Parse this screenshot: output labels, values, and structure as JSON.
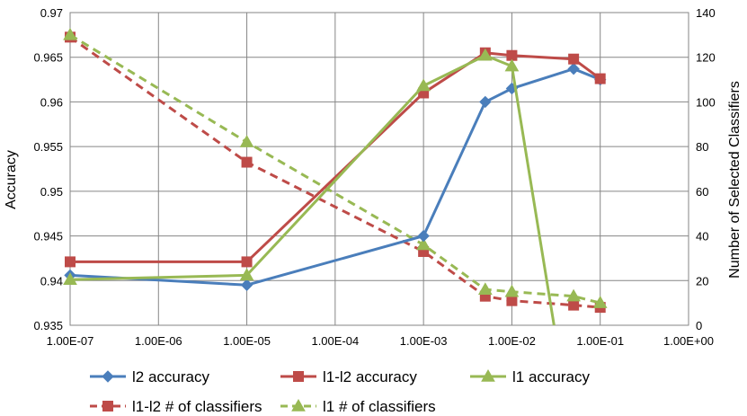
{
  "chart_data": {
    "type": "line",
    "title": "",
    "x_scale": "log",
    "x_ticks": [
      1e-07,
      1e-06,
      1e-05,
      0.0001,
      0.001,
      0.01,
      0.1,
      1
    ],
    "x_tick_labels": [
      "1.00E-07",
      "1.00E-06",
      "1.00E-05",
      "1.00E-04",
      "1.00E-03",
      "1.00E-02",
      "1.00E-01",
      "1.00E+00"
    ],
    "xlim": [
      1e-07,
      1
    ],
    "ylabel": "Accuracy",
    "ylim": [
      0.935,
      0.97
    ],
    "y_ticks": [
      0.935,
      0.94,
      0.945,
      0.95,
      0.955,
      0.96,
      0.965,
      0.97
    ],
    "y_tick_labels": [
      "0.935",
      "0.94",
      "0.945",
      "0.95",
      "0.955",
      "0.96",
      "0.965",
      "0.97"
    ],
    "y2label": "Number of Selected Classifiers",
    "y2lim": [
      0,
      140
    ],
    "y2_ticks": [
      0,
      20,
      40,
      60,
      80,
      100,
      120,
      140
    ],
    "y2_tick_labels": [
      "0",
      "20",
      "40",
      "60",
      "80",
      "100",
      "120",
      "140"
    ],
    "grid": true,
    "legend_position": "bottom",
    "series": [
      {
        "name": "l2 accuracy",
        "axis": "left",
        "color": "#4a7ebb",
        "marker": "diamond",
        "dashed": false,
        "x": [
          1e-07,
          1e-05,
          0.001,
          0.005,
          0.01,
          0.05,
          0.1
        ],
        "y": [
          0.9406,
          0.9395,
          0.945,
          0.96,
          0.9615,
          0.9637,
          0.9625
        ]
      },
      {
        "name": "l1-l2 accuracy",
        "axis": "left",
        "color": "#be4b48",
        "marker": "square",
        "dashed": false,
        "x": [
          1e-07,
          1e-05,
          0.001,
          0.005,
          0.01,
          0.05,
          0.1
        ],
        "y": [
          0.9421,
          0.9421,
          0.961,
          0.9655,
          0.9652,
          0.9648,
          0.9626
        ]
      },
      {
        "name": "l1 accuracy",
        "axis": "left",
        "color": "#98b954",
        "marker": "triangle",
        "dashed": false,
        "x": [
          1e-07,
          1e-05,
          0.001,
          0.005,
          0.01,
          0.03
        ],
        "y": [
          0.9401,
          0.9406,
          0.9618,
          0.9652,
          0.964,
          0.935
        ]
      },
      {
        "name": "l1-l2 # of classifiers",
        "axis": "right",
        "color": "#be4b48",
        "marker": "square",
        "dashed": true,
        "x": [
          1e-07,
          1e-05,
          0.001,
          0.005,
          0.01,
          0.05,
          0.1
        ],
        "y": [
          129,
          73,
          33,
          13,
          11,
          9,
          8
        ]
      },
      {
        "name": "l1  # of classifiers",
        "axis": "right",
        "color": "#98b954",
        "marker": "triangle",
        "dashed": true,
        "x": [
          1e-07,
          1e-05,
          0.001,
          0.005,
          0.01,
          0.05,
          0.1
        ],
        "y": [
          130,
          82,
          36,
          16,
          15,
          13,
          10
        ]
      }
    ]
  }
}
